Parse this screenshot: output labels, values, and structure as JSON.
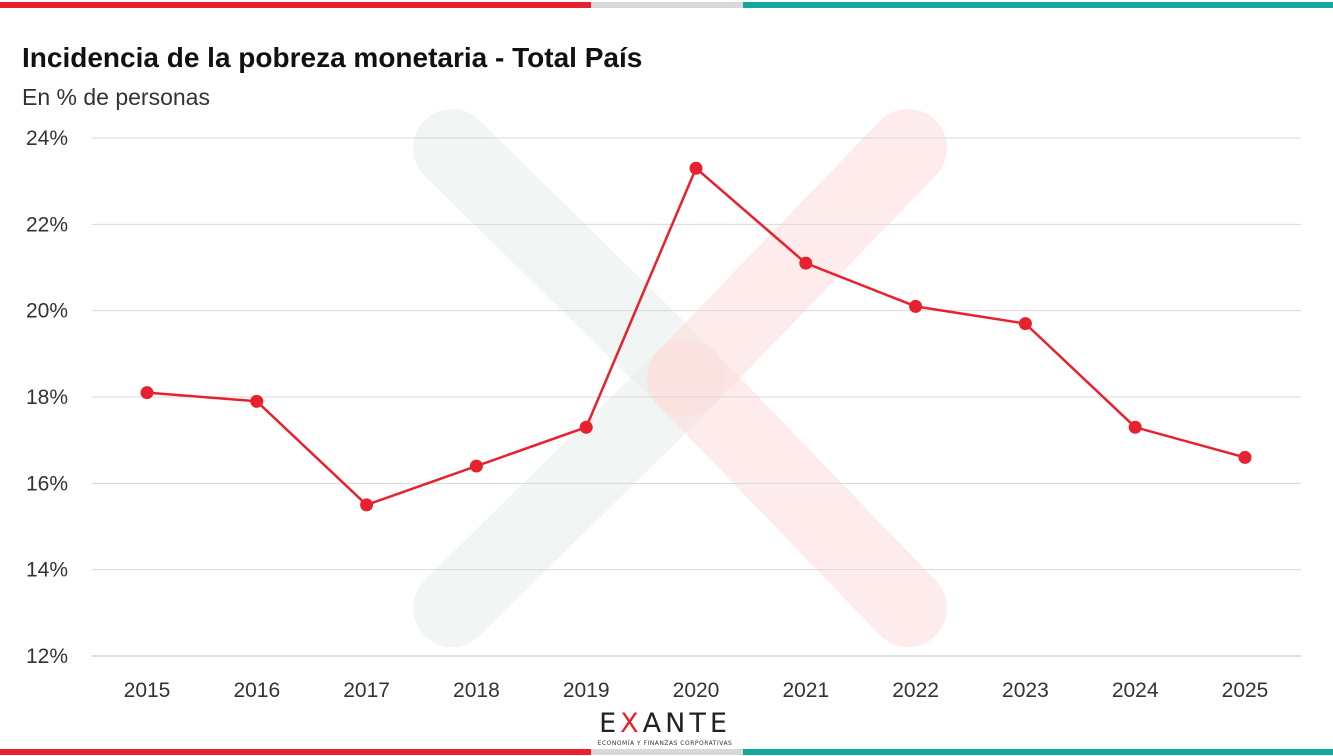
{
  "header": {
    "title": "Incidencia de la pobreza monetaria - Total País",
    "subtitle": "En % de personas"
  },
  "colors": {
    "series": "#e8212e",
    "red": "#e8212e",
    "gray": "#d9d9d9",
    "teal": "#13a89e",
    "grid": "#d9d9d9"
  },
  "logo": {
    "word_pre": "E",
    "word_x": "X",
    "word_post": "ANTE",
    "tagline": "ECONOMÍA Y FINANZAS CORPORATIVAS"
  },
  "chart_data": {
    "type": "line",
    "title": "Incidencia de la pobreza monetaria - Total País",
    "subtitle": "En % de personas",
    "x": [
      "2015",
      "2016",
      "2017",
      "2018",
      "2019",
      "2020",
      "2021",
      "2022",
      "2023",
      "2024",
      "2025"
    ],
    "series": [
      {
        "values": [
          18.1,
          17.9,
          15.5,
          16.4,
          17.3,
          23.3,
          21.1,
          20.1,
          19.7,
          17.3,
          16.6
        ]
      }
    ],
    "ylim": [
      12,
      24
    ],
    "yticks": [
      "12%",
      "14%",
      "16%",
      "18%",
      "20%",
      "22%",
      "24%"
    ],
    "grid": true,
    "legend": "none"
  }
}
